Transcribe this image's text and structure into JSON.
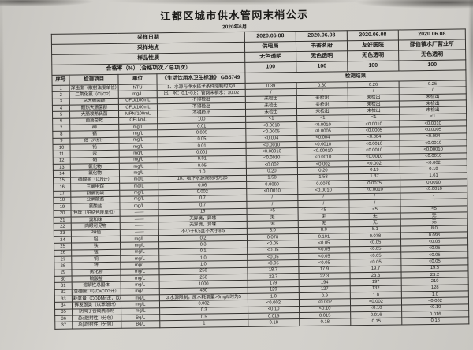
{
  "page": {
    "title": "江都区城市供水管网末梢公示",
    "subtitle": "2020年6月"
  },
  "colors": {
    "paper": "#d2d0cb",
    "ink": "#1c1b19",
    "line": "#34322f"
  },
  "meta_rows": [
    {
      "label": "采样日期",
      "values": [
        "2020.06.08",
        "2020.06.08",
        "2020.06.08",
        "2020.06.08"
      ]
    },
    {
      "label": "采样地点",
      "values": [
        "供电局",
        "书香茗府",
        "友好医院",
        "邵伯镇水厂营业所"
      ]
    },
    {
      "label": "样品性质",
      "values": [
        "无色透明",
        "无色透明",
        "无色透明",
        "无色透明"
      ]
    },
    {
      "label": "合格率（%）（合格项次／总项次）",
      "values": [
        "100",
        "100",
        "100",
        "100"
      ]
    }
  ],
  "header": {
    "no": "序号",
    "item": "检测项目",
    "unit": "单位",
    "standard": "《生活饮用水卫生标准》 GB5749",
    "result": "检测结果"
  },
  "rows": [
    {
      "no": "1",
      "item": "浑浊度（散射浊度单位）",
      "unit": "NTU",
      "standard": "1、水源与净水技术条件限制时为3",
      "values": [
        "0.39",
        "0.30",
        "0.26",
        "0.25"
      ]
    },
    {
      "no": "2",
      "item": "二氧化氯（CLO2）",
      "unit": "mg/L",
      "standard": "出厂水：0.1~0.8；管网末梢水：≥0.02",
      "values": [
        "/",
        "/",
        "/",
        "/"
      ]
    },
    {
      "no": "3",
      "item": "总大肠菌群",
      "unit": "CFU/100mL",
      "standard": "不得检出",
      "values": [
        "未检出",
        "未检出",
        "未检出",
        "未检出"
      ]
    },
    {
      "no": "4",
      "item": "耐热大肠菌群",
      "unit": "CFU/100mL",
      "standard": "不得检出",
      "values": [
        "未检出",
        "未检出",
        "未检出",
        "未检出"
      ]
    },
    {
      "no": "5",
      "item": "大肠埃希氏菌",
      "unit": "MPN/100mL",
      "standard": "不得检出",
      "values": [
        "未检出",
        "未检出",
        "未检出",
        "未检出"
      ]
    },
    {
      "no": "6",
      "item": "菌落总数",
      "unit": "CFU/mL",
      "standard": "100",
      "values": [
        "<1",
        "<1",
        "<1",
        "<1"
      ]
    },
    {
      "no": "7",
      "item": "砷",
      "unit": "mg/L",
      "standard": "0.01",
      "values": [
        "<0.0010",
        "<0.0010",
        "<0.0010",
        "<0.0010"
      ]
    },
    {
      "no": "8",
      "item": "镉",
      "unit": "mg/L",
      "standard": "0.005",
      "values": [
        "<0.0005",
        "<0.0005",
        "<0.0005",
        "<0.0005"
      ]
    },
    {
      "no": "9",
      "item": "铬（六价）",
      "unit": "mg/L",
      "standard": "0.05",
      "values": [
        "<0.004",
        "<0.004",
        "<0.004",
        "<0.004"
      ]
    },
    {
      "no": "10",
      "item": "铅",
      "unit": "mg/L",
      "standard": "0.01",
      "values": [
        "<0.0010",
        "<0.0010",
        "<0.0010",
        "<0.0010"
      ]
    },
    {
      "no": "11",
      "item": "汞",
      "unit": "mg/L",
      "standard": "0.001",
      "values": [
        "<0.00010",
        "<0.00010",
        "<0.0010",
        "<0.00010"
      ]
    },
    {
      "no": "12",
      "item": "硒",
      "unit": "mg/L",
      "standard": "0.01",
      "values": [
        "<0.0010",
        "<0.0010",
        "<0.0010",
        "<0.0010"
      ]
    },
    {
      "no": "13",
      "item": "氰化物",
      "unit": "mg/L",
      "standard": "0.05",
      "values": [
        "<0.002",
        "<0.002",
        "<0.002",
        "<0.002"
      ]
    },
    {
      "no": "14",
      "item": "氟化物",
      "unit": "mg/L",
      "standard": "1.0",
      "values": [
        "0.20",
        "0.20",
        "0.19",
        "0.19"
      ]
    },
    {
      "no": "15",
      "item": "硝酸盐（以N计）",
      "unit": "mg/L",
      "standard": "10、地下水源限制时为20",
      "values": [
        "1.58",
        "1.58",
        "1.37",
        "1.61"
      ]
    },
    {
      "no": "16",
      "item": "三氯甲烷",
      "unit": "mg/L",
      "standard": "0.06",
      "values": [
        "0.0080",
        "0.0079",
        "0.0075",
        "0.0090"
      ]
    },
    {
      "no": "17",
      "item": "四氯化碳",
      "unit": "mg/L",
      "standard": "0.002",
      "values": [
        "<0.0010",
        "<0.0010",
        "<0.0010",
        "<0.0010"
      ]
    },
    {
      "no": "18",
      "item": "亚氯酸盐",
      "unit": "mg/L",
      "standard": "0.7",
      "values": [
        "/",
        "/",
        "/",
        "/"
      ]
    },
    {
      "no": "19",
      "item": "氯酸盐",
      "unit": "mg/L",
      "standard": "0.7",
      "values": [
        "/",
        "/",
        "/",
        "/"
      ]
    },
    {
      "no": "20",
      "item": "色度（铂钴色度单位）",
      "unit": "——",
      "standard": "15",
      "values": [
        "<5",
        "<5",
        "<5",
        "<5"
      ]
    },
    {
      "no": "21",
      "item": "臭和味",
      "unit": "——",
      "standard": "无异臭，异味",
      "values": [
        "无",
        "无",
        "无",
        "无"
      ]
    },
    {
      "no": "22",
      "item": "肉眼可见物",
      "unit": "——",
      "standard": "无异臭，异味",
      "values": [
        "无",
        "无",
        "无",
        "无"
      ]
    },
    {
      "no": "23",
      "item": "PH值",
      "unit": "——",
      "standard": "不小于6.5且不大于8.5",
      "values": [
        "8.0",
        "8.0",
        "8.1",
        "8.0"
      ]
    },
    {
      "no": "24",
      "item": "铝",
      "unit": "mg/L",
      "standard": "0.2",
      "values": [
        "0.078",
        "0.101",
        "0.078",
        "0.096"
      ]
    },
    {
      "no": "25",
      "item": "铁",
      "unit": "mg/L",
      "standard": "0.3",
      "values": [
        "<0.05",
        "<0.05",
        "<0.05",
        "<0.05"
      ]
    },
    {
      "no": "26",
      "item": "锰",
      "unit": "mg/L",
      "standard": "0.1",
      "values": [
        "<0.05",
        "<0.05",
        "<0.05",
        "<0.05"
      ]
    },
    {
      "no": "27",
      "item": "铜",
      "unit": "mg/L",
      "standard": "1.0",
      "values": [
        "<0.05",
        "<0.05",
        "<0.05",
        "<0.05"
      ]
    },
    {
      "no": "28",
      "item": "锌",
      "unit": "mg/L",
      "standard": "1.0",
      "values": [
        "<0.05",
        "<0.05",
        "<0.05",
        "<0.05"
      ]
    },
    {
      "no": "29",
      "item": "氯化物",
      "unit": "mg/L",
      "standard": "250",
      "values": [
        "18.7",
        "17.9",
        "19.7",
        "19.5"
      ]
    },
    {
      "no": "30",
      "item": "硫酸盐",
      "unit": "mg/L",
      "standard": "250",
      "values": [
        "22.7",
        "22.3",
        "23.3",
        "23.2"
      ]
    },
    {
      "no": "31",
      "item": "溶解性总固体",
      "unit": "mg/L",
      "standard": "1000",
      "values": [
        "179",
        "194",
        "197",
        "219"
      ]
    },
    {
      "no": "32",
      "item": "总硬度（以CaCO3计）",
      "unit": "mg/L",
      "standard": "450",
      "values": [
        "129",
        "127",
        "132",
        "128"
      ]
    },
    {
      "no": "33",
      "item": "耗氧量（CODMn法，以O2计）",
      "unit": "mg/L",
      "standard": "3,水源限制，原水耗氧量>6mg/L时为5",
      "values": [
        "1.0",
        "0.9",
        "1.0",
        "1.0"
      ]
    },
    {
      "no": "34",
      "item": "挥发酚类（以苯酚计）",
      "unit": "mg/L",
      "standard": "0.002",
      "values": [
        "<0.002",
        "<0.002",
        "<0.002",
        "<0.002"
      ]
    },
    {
      "no": "35",
      "item": "阴离子合成洗涤剂",
      "unit": "mg/L",
      "standard": "0.3",
      "values": [
        "<0.10",
        "<0.10",
        "<0.10",
        "<0.10"
      ]
    },
    {
      "no": "36",
      "item": "总α放射性（分包）",
      "unit": "Bq/L",
      "standard": "0.5",
      "values": [
        "0.015",
        "0.015",
        "0.016",
        "0.016"
      ]
    },
    {
      "no": "37",
      "item": "总β放射性（分包）",
      "unit": "Bq/L",
      "standard": "1",
      "values": [
        "0.18",
        "0.18",
        "0.15",
        "0.16"
      ]
    }
  ]
}
